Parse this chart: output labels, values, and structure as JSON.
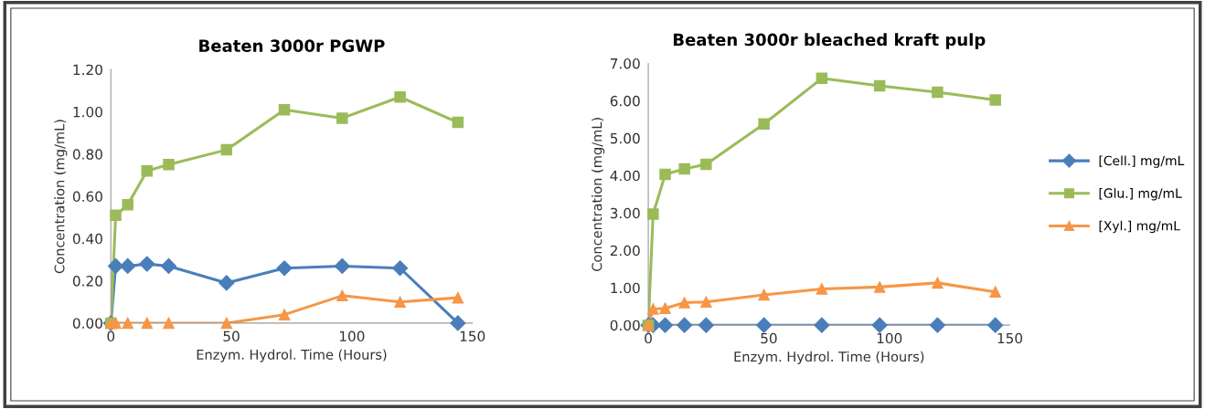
{
  "chart_data": [
    {
      "type": "line",
      "title": "Beaten 3000r PGWP",
      "xlabel": "Enzym. Hydrol. Time (Hours)",
      "ylabel": "Concentration (mg/mL)",
      "x": [
        0,
        2,
        7,
        15,
        24,
        48,
        72,
        96,
        120,
        144
      ],
      "series": [
        {
          "color": "#4a7ebb",
          "marker": "diamond",
          "values": [
            0,
            0.27,
            0.27,
            0.28,
            0.27,
            0.19,
            0.26,
            0.27,
            0.26,
            0.0
          ]
        },
        {
          "color": "#9bbb59",
          "marker": "square",
          "values": [
            0,
            0.51,
            0.56,
            0.72,
            0.75,
            0.82,
            1.01,
            0.97,
            1.07,
            0.95
          ]
        },
        {
          "color": "#f79646",
          "marker": "triangle",
          "values": [
            0,
            0,
            0,
            0,
            0,
            0,
            0.04,
            0.13,
            0.1,
            0.12
          ]
        }
      ],
      "xlim": [
        0,
        150
      ],
      "xticks": [
        0,
        50,
        100,
        150
      ],
      "ylim": [
        0,
        1.2
      ],
      "yticks": [
        {
          "value": 0,
          "label": "0.00"
        },
        {
          "value": 0.2,
          "label": "0.20"
        },
        {
          "value": 0.4,
          "label": "0.40"
        },
        {
          "value": 0.6,
          "label": "0.60"
        },
        {
          "value": 0.8,
          "label": "0.80"
        },
        {
          "value": 1.0,
          "label": "1.00"
        },
        {
          "value": 1.2,
          "label": "1.20"
        }
      ],
      "grid": false,
      "legend": false
    },
    {
      "type": "line",
      "title": "Beaten 3000r bleached kraft pulp",
      "xlabel": "Enzym. Hydrol. Time (Hours)",
      "ylabel": "Concentration (mg/mL)",
      "x": [
        0,
        2,
        7,
        15,
        24,
        48,
        72,
        96,
        120,
        144
      ],
      "series": [
        {
          "name": "[Cell.] mg/mL",
          "color": "#4a7ebb",
          "marker": "diamond",
          "values": [
            0,
            0,
            0,
            0,
            0,
            0,
            0,
            0,
            0,
            0
          ]
        },
        {
          "name": "[Glu.] mg/mL",
          "color": "#9bbb59",
          "marker": "square",
          "values": [
            0,
            2.97,
            4.03,
            4.18,
            4.3,
            5.38,
            6.6,
            6.4,
            6.23,
            6.02
          ]
        },
        {
          "name": "[Xyl.] mg/mL",
          "color": "#f79646",
          "marker": "triangle",
          "values": [
            0,
            0.43,
            0.45,
            0.6,
            0.62,
            0.81,
            0.97,
            1.02,
            1.13,
            0.89
          ]
        }
      ],
      "xlim": [
        0,
        150
      ],
      "xticks": [
        0,
        50,
        100,
        150
      ],
      "ylim": [
        0,
        7
      ],
      "yticks": [
        {
          "value": 0,
          "label": "0.00"
        },
        {
          "value": 1,
          "label": "1.00"
        },
        {
          "value": 2,
          "label": "2.00"
        },
        {
          "value": 3,
          "label": "3.00"
        },
        {
          "value": 4,
          "label": "4.00"
        },
        {
          "value": 5,
          "label": "5.00"
        },
        {
          "value": 6,
          "label": "6.00"
        },
        {
          "value": 7,
          "label": "7.00"
        }
      ],
      "grid": false,
      "legend": "right"
    }
  ]
}
